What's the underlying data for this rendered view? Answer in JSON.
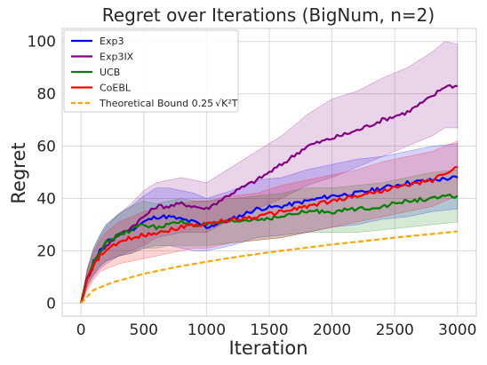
{
  "chart_data": {
    "type": "line",
    "title": "Regret over Iterations (BigNum, n=2)",
    "xlabel": "Iteration",
    "ylabel": "Regret",
    "xlim": [
      -150,
      3150
    ],
    "ylim": [
      -5,
      105
    ],
    "xticks": [
      0,
      500,
      1000,
      1500,
      2000,
      2500,
      3000
    ],
    "yticks": [
      0,
      20,
      40,
      60,
      80,
      100
    ],
    "grid": true,
    "legend_position": "top-left",
    "series": [
      {
        "name": "Exp3",
        "color": "#0000ff",
        "style": "solid",
        "x": [
          0,
          50,
          100,
          150,
          200,
          300,
          400,
          500,
          600,
          700,
          800,
          900,
          1000,
          1200,
          1400,
          1600,
          1800,
          2000,
          2200,
          2400,
          2600,
          2800,
          3000
        ],
        "y": [
          0,
          10,
          16,
          20,
          23,
          26,
          28,
          31,
          33,
          33,
          32,
          31,
          29,
          32,
          36,
          37,
          39,
          41,
          42,
          44,
          46,
          47,
          48
        ],
        "lower": [
          0,
          7,
          11,
          14,
          16,
          18,
          19,
          21,
          22,
          22,
          21,
          20,
          20,
          22,
          25,
          26,
          27,
          29,
          30,
          32,
          33,
          35,
          36
        ],
        "upper": [
          0,
          13,
          21,
          26,
          30,
          34,
          37,
          41,
          44,
          44,
          43,
          42,
          40,
          43,
          47,
          48,
          51,
          53,
          55,
          56,
          58,
          60,
          61
        ]
      },
      {
        "name": "Exp3IX",
        "color": "#800080",
        "style": "solid",
        "x": [
          0,
          50,
          100,
          150,
          200,
          300,
          400,
          500,
          600,
          700,
          800,
          900,
          1000,
          1200,
          1400,
          1600,
          1800,
          2000,
          2200,
          2400,
          2600,
          2800,
          2900,
          3000
        ],
        "y": [
          0,
          9,
          15,
          19,
          22,
          26,
          29,
          33,
          37,
          37,
          38,
          37,
          36,
          42,
          47,
          53,
          60,
          63,
          66,
          70,
          73,
          79,
          83,
          83
        ],
        "lower": [
          0,
          6,
          10,
          13,
          15,
          18,
          20,
          22,
          25,
          26,
          27,
          27,
          27,
          32,
          36,
          40,
          45,
          48,
          52,
          56,
          60,
          64,
          67,
          67
        ],
        "upper": [
          0,
          12,
          20,
          25,
          29,
          34,
          38,
          43,
          46,
          47,
          48,
          47,
          46,
          52,
          58,
          64,
          72,
          78,
          81,
          86,
          90,
          96,
          100,
          99
        ]
      },
      {
        "name": "UCB",
        "color": "#008000",
        "style": "solid",
        "x": [
          0,
          50,
          100,
          150,
          200,
          300,
          400,
          500,
          600,
          700,
          800,
          900,
          1000,
          1200,
          1400,
          1600,
          1800,
          2000,
          2200,
          2400,
          2600,
          2800,
          3000
        ],
        "y": [
          0,
          10,
          16,
          20,
          23,
          26,
          28,
          30,
          29,
          30,
          31,
          30,
          30,
          31,
          32,
          33,
          35,
          35,
          36,
          37,
          39,
          40,
          41
        ],
        "lower": [
          0,
          7,
          11,
          14,
          16,
          18,
          19,
          21,
          21,
          22,
          22,
          22,
          22,
          23,
          24,
          25,
          27,
          27,
          27,
          28,
          29,
          30,
          31
        ],
        "upper": [
          0,
          13,
          21,
          26,
          30,
          34,
          37,
          39,
          38,
          39,
          40,
          39,
          39,
          40,
          41,
          42,
          44,
          44,
          45,
          46,
          48,
          50,
          51
        ]
      },
      {
        "name": "CoEBL",
        "color": "#ff0000",
        "style": "solid",
        "x": [
          0,
          50,
          100,
          150,
          200,
          300,
          400,
          500,
          600,
          700,
          800,
          900,
          1000,
          1200,
          1400,
          1600,
          1800,
          2000,
          2200,
          2400,
          2600,
          2800,
          3000
        ],
        "y": [
          0,
          9,
          14,
          18,
          20,
          23,
          25,
          26,
          27,
          28,
          29,
          30,
          30,
          32,
          33,
          35,
          37,
          39,
          41,
          43,
          45,
          47,
          52
        ],
        "lower": [
          0,
          5,
          9,
          12,
          13,
          15,
          16,
          17,
          18,
          19,
          20,
          21,
          21,
          23,
          24,
          25,
          27,
          29,
          31,
          33,
          35,
          37,
          41
        ],
        "upper": [
          0,
          13,
          19,
          24,
          27,
          31,
          33,
          35,
          36,
          37,
          38,
          39,
          39,
          41,
          42,
          45,
          47,
          49,
          51,
          54,
          56,
          58,
          62
        ]
      },
      {
        "name": "Theoretical Bound 0.25√K²T",
        "color": "#ffa500",
        "style": "dashed",
        "x": [
          0,
          100,
          250,
          500,
          750,
          1000,
          1250,
          1500,
          1750,
          2000,
          2250,
          2500,
          2750,
          3000
        ],
        "y": [
          0,
          5,
          7.9,
          11.2,
          13.7,
          15.8,
          17.7,
          19.4,
          20.9,
          22.4,
          23.7,
          25,
          26.2,
          27.4
        ]
      }
    ]
  },
  "legend": {
    "items": [
      {
        "label": "Exp3",
        "color": "#0000ff",
        "style": "solid"
      },
      {
        "label": "Exp3IX",
        "color": "#800080",
        "style": "solid"
      },
      {
        "label": "UCB",
        "color": "#008000",
        "style": "solid"
      },
      {
        "label": "CoEBL",
        "color": "#ff0000",
        "style": "solid"
      },
      {
        "label": "Theoretical Bound 0.25",
        "math": "√K²T",
        "color": "#ffa500",
        "style": "dashed"
      }
    ]
  }
}
